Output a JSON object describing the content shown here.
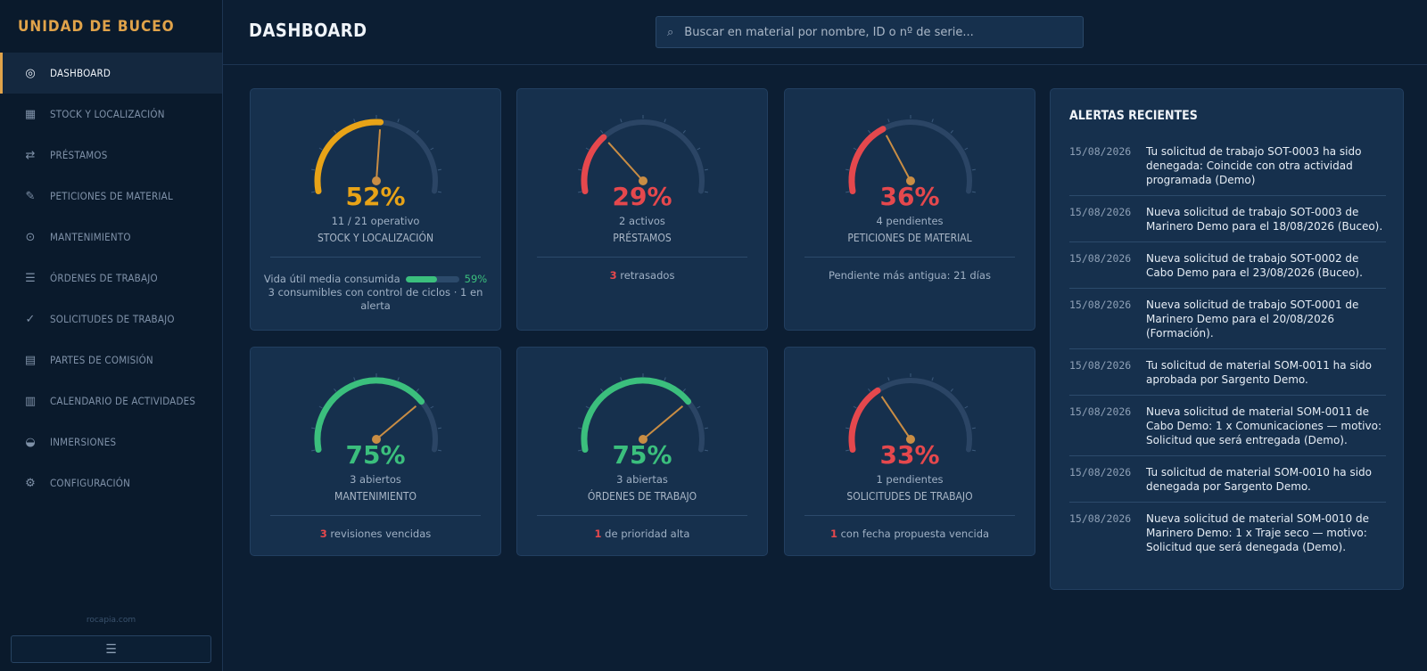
{
  "app": {
    "brand": "UNIDAD DE BUCEO"
  },
  "sidebar": {
    "items": [
      {
        "label": "DASHBOARD",
        "icon": "target-icon",
        "glyph": "◎",
        "active": true
      },
      {
        "label": "STOCK Y LOCALIZACIÓN",
        "icon": "grid-icon",
        "glyph": "▦",
        "active": false
      },
      {
        "label": "PRÉSTAMOS",
        "icon": "swap-arrows-icon",
        "glyph": "⇄",
        "active": false
      },
      {
        "label": "PETICIONES DE MATERIAL",
        "icon": "pencil-icon",
        "glyph": "✎",
        "active": false
      },
      {
        "label": "MANTENIMIENTO",
        "icon": "crosshair-icon",
        "glyph": "⊙",
        "active": false
      },
      {
        "label": "ÓRDENES DE TRABAJO",
        "icon": "list-icon",
        "glyph": "☰",
        "active": false
      },
      {
        "label": "SOLICITUDES DE TRABAJO",
        "icon": "check-icon",
        "glyph": "✓",
        "active": false
      },
      {
        "label": "PARTES DE COMISIÓN",
        "icon": "document-icon",
        "glyph": "▤",
        "active": false
      },
      {
        "label": "CALENDARIO DE ACTIVIDADES",
        "icon": "calendar-icon",
        "glyph": "▥",
        "active": false
      },
      {
        "label": "INMERSIONES",
        "icon": "half-circle-icon",
        "glyph": "◒",
        "active": false
      },
      {
        "label": "CONFIGURACIÓN",
        "icon": "gear-icon",
        "glyph": "⚙",
        "active": false
      }
    ],
    "footer_site": "rocapia.com",
    "menu_glyph": "☰"
  },
  "header": {
    "title": "DASHBOARD",
    "search_placeholder": "Buscar en material por nombre, ID o nº de serie...",
    "search_value": ""
  },
  "colors": {
    "amber": "#e8a317",
    "red": "#e5484d",
    "green": "#3bbf7d",
    "track": "#2b4565",
    "needle": "#c98d44"
  },
  "cards": [
    {
      "percent": 52,
      "pct_label": "52%",
      "color": "#e8a317",
      "sub": "11 / 21 operativo",
      "title": "STOCK Y LOCALIZACIÓN",
      "foot": {
        "type": "life",
        "life_label": "Vida útil media consumida",
        "life_pct": 59,
        "life_pct_label": "59%",
        "line2": "3 consumibles con control de ciclos · 1 en alerta"
      }
    },
    {
      "percent": 29,
      "pct_label": "29%",
      "color": "#e5484d",
      "sub": "2 activos",
      "title": "PRÉSTAMOS",
      "foot": {
        "type": "count",
        "num": "3",
        "text": " retrasados"
      }
    },
    {
      "percent": 36,
      "pct_label": "36%",
      "color": "#e5484d",
      "sub": "4 pendientes",
      "title": "PETICIONES DE MATERIAL",
      "foot": {
        "type": "text",
        "text": "Pendiente más antigua: 21 días"
      }
    },
    {
      "percent": 75,
      "pct_label": "75%",
      "color": "#3bbf7d",
      "sub": "3 abiertos",
      "title": "MANTENIMIENTO",
      "foot": {
        "type": "count",
        "num": "3",
        "text": " revisiones vencidas"
      }
    },
    {
      "percent": 75,
      "pct_label": "75%",
      "color": "#3bbf7d",
      "sub": "3 abiertas",
      "title": "ÓRDENES DE TRABAJO",
      "foot": {
        "type": "count",
        "num": "1",
        "text": " de prioridad alta"
      }
    },
    {
      "percent": 33,
      "pct_label": "33%",
      "color": "#e5484d",
      "sub": "1 pendientes",
      "title": "SOLICITUDES DE TRABAJO",
      "foot": {
        "type": "count",
        "num": "1",
        "text": " con fecha propuesta vencida"
      }
    }
  ],
  "alerts": {
    "title": "ALERTAS RECIENTES",
    "items": [
      {
        "date": "15/08/2026",
        "text": "Tu solicitud de trabajo SOT-0003 ha sido denegada: Coincide con otra actividad programada (Demo)"
      },
      {
        "date": "15/08/2026",
        "text": "Nueva solicitud de trabajo SOT-0003 de Marinero Demo para el 18/08/2026 (Buceo)."
      },
      {
        "date": "15/08/2026",
        "text": "Nueva solicitud de trabajo SOT-0002 de Cabo Demo para el 23/08/2026 (Buceo)."
      },
      {
        "date": "15/08/2026",
        "text": "Nueva solicitud de trabajo SOT-0001 de Marinero Demo para el 20/08/2026 (Formación)."
      },
      {
        "date": "15/08/2026",
        "text": "Tu solicitud de material SOM-0011 ha sido aprobada por Sargento Demo."
      },
      {
        "date": "15/08/2026",
        "text": "Nueva solicitud de material SOM-0011 de Cabo Demo: 1 x Comunicaciones — motivo: Solicitud que será entregada (Demo)."
      },
      {
        "date": "15/08/2026",
        "text": "Tu solicitud de material SOM-0010 ha sido denegada por Sargento Demo."
      },
      {
        "date": "15/08/2026",
        "text": "Nueva solicitud de material SOM-0010 de Marinero Demo: 1 x Traje seco — motivo: Solicitud que será denegada (Demo)."
      }
    ]
  }
}
